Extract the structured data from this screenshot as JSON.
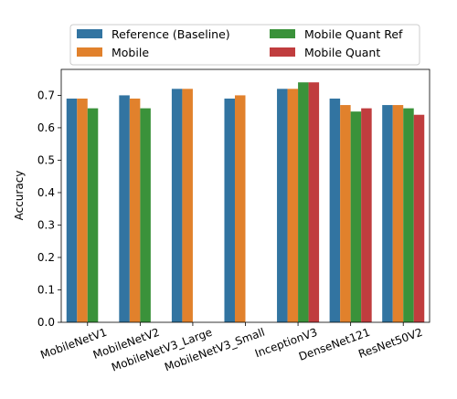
{
  "chart_data": {
    "type": "bar",
    "ylabel": "Accuracy",
    "ylim": [
      0,
      0.78
    ],
    "yticks": [
      "0.0",
      "0.1",
      "0.2",
      "0.3",
      "0.4",
      "0.5",
      "0.6",
      "0.7"
    ],
    "categories": [
      "MobileNetV1",
      "MobileNetV2",
      "MobileNetV3_Large",
      "MobileNetV3_Small",
      "InceptionV3",
      "DenseNet121",
      "ResNet50V2"
    ],
    "legend_position": "top-center, above plot, 2 columns",
    "series": [
      {
        "name": "Reference (Baseline)",
        "color": "#3274a1",
        "values": [
          0.69,
          0.7,
          0.72,
          0.69,
          0.72,
          0.69,
          0.67
        ]
      },
      {
        "name": "Mobile",
        "color": "#e1812c",
        "values": [
          0.69,
          0.69,
          0.72,
          0.7,
          0.72,
          0.67,
          0.67
        ]
      },
      {
        "name": "Mobile Quant Ref",
        "color": "#3a923a",
        "values": [
          0.66,
          0.66,
          null,
          null,
          0.74,
          0.65,
          0.66
        ]
      },
      {
        "name": "Mobile Quant",
        "color": "#c03d3e",
        "values": [
          null,
          null,
          null,
          null,
          0.74,
          0.66,
          0.64
        ]
      }
    ]
  }
}
